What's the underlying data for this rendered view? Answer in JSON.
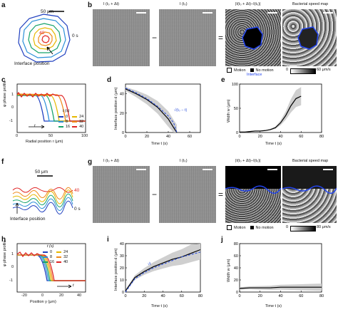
{
  "panels": {
    "a": {
      "label": "a",
      "scale_label": "50 μm",
      "time_labels": [
        "40",
        "0 s"
      ],
      "caption": "Interface position"
    },
    "b": {
      "label": "b",
      "img1_title": "I (t₀ + Δt)",
      "img2_title": "I (t₀)",
      "img3_title": "|I(t₀ + Δt)−I(t₀)|",
      "img4_title": "Bacterial speed map",
      "minus": "−",
      "equals": "=",
      "legend_motion": "Motion",
      "legend_nomotion": "No motion",
      "legend_interface": "Interface",
      "colorbar_min": "0",
      "colorbar_max": "60 μm/s"
    },
    "c": {
      "label": "c",
      "ylabel": "φ phase profile",
      "xlabel": "Radial position r (μm)",
      "xticks": [
        "0",
        "50",
        "100"
      ],
      "yticks": [
        "1",
        "0",
        "-1"
      ],
      "legend_title": "t (s)",
      "legend": [
        "0",
        "24",
        "8",
        "32",
        "16",
        "40"
      ],
      "arrow_label": "t"
    },
    "d": {
      "label": "d",
      "ylabel": "Interface position d (μm)",
      "xlabel": "Time t (s)",
      "xticks": [
        "0",
        "20",
        "40",
        "60"
      ],
      "yticks": [
        "0",
        "20",
        "40"
      ],
      "fit_label": "√(t₀ − t)"
    },
    "e": {
      "label": "e",
      "ylabel": "Width w (μm)",
      "xlabel": "Time t (s)",
      "xticks": [
        "0",
        "20",
        "40",
        "60",
        "80"
      ],
      "yticks": [
        "0",
        "50",
        "100"
      ]
    },
    "f": {
      "label": "f",
      "scale_label": "50 μm",
      "time_labels": [
        "40",
        "0 s"
      ],
      "caption": "Interface position"
    },
    "g": {
      "label": "g",
      "img1_title": "I (t₀ + Δt)",
      "img2_title": "I (t₀)",
      "img3_title": "|I(t₀ + Δt)−I(t₀)|",
      "img4_title": "Bacterial speed map",
      "minus": "−",
      "equals": "=",
      "legend_motion": "Motion",
      "legend_nomotion": "No motion",
      "colorbar_min": "0",
      "colorbar_max": "80 μm/s"
    },
    "h": {
      "label": "h",
      "ylabel": "φ phase profile",
      "xlabel": "Position y (μm)",
      "xticks": [
        "-20",
        "0",
        "20",
        "40"
      ],
      "yticks": [
        "1",
        "0",
        "-1"
      ],
      "legend_title": "t (s)",
      "legend": [
        "0",
        "24",
        "8",
        "32",
        "16",
        "40"
      ],
      "arrow_label": "t"
    },
    "i": {
      "label": "i",
      "ylabel": "Interface position d (μm)",
      "xlabel": "Time t (s)",
      "xticks": [
        "0",
        "20",
        "40",
        "60",
        "80"
      ],
      "yticks": [
        "0",
        "10",
        "20",
        "30",
        "40"
      ],
      "fit_label": "√t"
    },
    "j": {
      "label": "j",
      "ylabel": "Width w (μm)",
      "xlabel": "Time t (s)",
      "xticks": [
        "0",
        "20",
        "40",
        "60",
        "80"
      ],
      "yticks": [
        "0",
        "20",
        "40",
        "60",
        "80"
      ]
    }
  },
  "colors": {
    "t0": "#1f3fbf",
    "t8": "#2b8fd8",
    "t16": "#16a36b",
    "t24": "#e6b800",
    "t32": "#f08a1a",
    "t40": "#e02424",
    "fit": "#3355dd"
  },
  "chart_data": [
    {
      "type": "line",
      "panel": "d",
      "xlabel": "Time t (s)",
      "ylabel": "Interface position d (μm)",
      "xlim": [
        0,
        70
      ],
      "ylim": [
        0,
        50
      ],
      "series": [
        {
          "name": "data",
          "x": [
            0,
            10,
            20,
            30,
            40,
            45,
            48
          ],
          "y": [
            45,
            40,
            34,
            26,
            14,
            5,
            0
          ]
        },
        {
          "name": "√(t₀ − t)",
          "x": [
            0,
            10,
            20,
            30,
            40,
            45,
            48
          ],
          "y": [
            46,
            41,
            35,
            27,
            17,
            10,
            0
          ]
        }
      ]
    },
    {
      "type": "line",
      "panel": "e",
      "xlabel": "Time t (s)",
      "ylabel": "Width w (μm)",
      "xlim": [
        0,
        80
      ],
      "ylim": [
        0,
        100
      ],
      "series": [
        {
          "name": "data",
          "x": [
            0,
            5,
            10,
            15,
            20,
            25,
            30,
            35,
            40,
            45,
            50,
            55,
            60
          ],
          "y": [
            1,
            1,
            2,
            3,
            3,
            4,
            6,
            10,
            20,
            35,
            55,
            70,
            75
          ]
        }
      ]
    },
    {
      "type": "line",
      "panel": "i",
      "xlabel": "Time t (s)",
      "ylabel": "Interface position d (μm)",
      "xlim": [
        0,
        80
      ],
      "ylim": [
        0,
        40
      ],
      "series": [
        {
          "name": "data",
          "x": [
            0,
            10,
            20,
            30,
            40,
            50,
            60,
            70,
            80
          ],
          "y": [
            1,
            12,
            17,
            21,
            24,
            27,
            29,
            32,
            35
          ]
        },
        {
          "name": "√t",
          "x": [
            0,
            10,
            20,
            30,
            40,
            50,
            60,
            70,
            80
          ],
          "y": [
            0,
            11,
            16,
            20,
            23,
            26,
            29,
            31,
            33
          ]
        }
      ]
    },
    {
      "type": "line",
      "panel": "j",
      "xlabel": "Time t (s)",
      "ylabel": "Width w (μm)",
      "xlim": [
        0,
        80
      ],
      "ylim": [
        0,
        80
      ],
      "series": [
        {
          "name": "data",
          "x": [
            0,
            10,
            20,
            30,
            40,
            50,
            60,
            70,
            80
          ],
          "y": [
            6,
            7,
            7,
            7,
            8,
            8,
            8,
            8,
            8
          ]
        }
      ]
    }
  ]
}
